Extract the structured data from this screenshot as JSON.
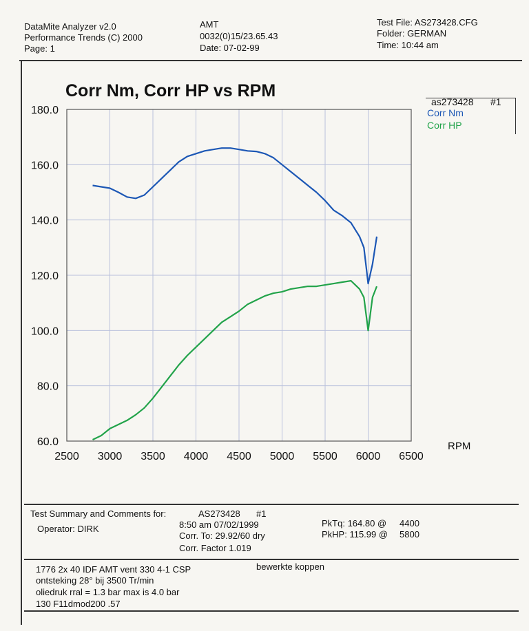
{
  "header": {
    "app": "DataMite Analyzer v2.0",
    "company": "Performance Trends (C) 2000",
    "page": "Page:  1",
    "vehicle": "AMT",
    "run_id": "0032(0)15/23.65.43",
    "date": "Date: 07-02-99",
    "test_file": "Test File: AS273428.CFG",
    "folder": "Folder: GERMAN",
    "time": "Time: 10:44 am"
  },
  "legend": {
    "run": "as273428",
    "run_no": "#1",
    "nm_label": "Corr Nm",
    "hp_label": "Corr HP"
  },
  "colors": {
    "nm": "#1c57b5",
    "hp": "#22a34a",
    "grid": "#b9c0dc"
  },
  "chart_data": {
    "type": "line",
    "title": "Corr Nm, Corr HP vs RPM",
    "xlabel": "RPM",
    "ylabel": "",
    "xlim": [
      2500,
      6500
    ],
    "ylim": [
      60,
      180
    ],
    "x_ticks": [
      "2500",
      "3000",
      "3500",
      "4000",
      "4500",
      "5000",
      "5500",
      "6000",
      "6500"
    ],
    "y_ticks": [
      "60.0",
      "80.0",
      "100.0",
      "120.0",
      "140.0",
      "160.0",
      "180.0"
    ],
    "grid": true,
    "legend_position": "top-right",
    "series": [
      {
        "name": "Corr Nm",
        "x": [
          2800,
          2900,
          3000,
          3100,
          3200,
          3300,
          3400,
          3500,
          3600,
          3700,
          3800,
          3900,
          4000,
          4100,
          4200,
          4300,
          4400,
          4500,
          4600,
          4700,
          4800,
          4900,
          5000,
          5100,
          5200,
          5300,
          5400,
          5500,
          5600,
          5700,
          5800,
          5900,
          5950,
          6000,
          6050,
          6100
        ],
        "y": [
          152.5,
          152,
          151.5,
          150,
          148.3,
          147.8,
          149,
          152,
          155,
          158,
          161,
          163,
          164,
          165,
          165.5,
          166,
          166,
          165.5,
          165,
          164.8,
          164,
          162.5,
          160,
          157.5,
          155,
          152.5,
          150,
          147,
          143.5,
          141.5,
          139,
          134,
          130,
          117,
          124,
          134
        ]
      },
      {
        "name": "Corr HP",
        "x": [
          2800,
          2900,
          3000,
          3100,
          3200,
          3300,
          3400,
          3500,
          3600,
          3700,
          3800,
          3900,
          4000,
          4100,
          4200,
          4300,
          4400,
          4500,
          4600,
          4700,
          4800,
          4900,
          5000,
          5100,
          5200,
          5300,
          5400,
          5500,
          5600,
          5700,
          5800,
          5850,
          5900,
          5950,
          6000,
          6050,
          6100
        ],
        "y": [
          60.5,
          62,
          64.5,
          66,
          67.5,
          69.5,
          72,
          75.5,
          79.5,
          83.5,
          87.5,
          91,
          94,
          97,
          100,
          103,
          105,
          107,
          109.5,
          111,
          112.5,
          113.5,
          114,
          115,
          115.5,
          116,
          116,
          116.5,
          117,
          117.5,
          118,
          116.5,
          115,
          112,
          100,
          112,
          116
        ]
      }
    ]
  },
  "summary": {
    "title": "Test Summary and Comments for:",
    "run": "AS273428",
    "run_no": "#1",
    "operator": "Operator: DIRK",
    "datetime": "8:50 am 07/02/1999",
    "corr_to": "Corr. To: 29.92/60 dry",
    "corr_factor": "Corr. Factor 1.019",
    "pktq": "PkTq: 164.80 @",
    "pktq_rpm": "4400",
    "pkhp": "PkHP: 115.99 @",
    "pkhp_rpm": "5800"
  },
  "comments": {
    "line1": "1776 2x  40 IDF AMT vent 330  4-1 CSP",
    "line1_right": "bewerkte koppen",
    "line2": "ontsteking 28° bij 3500 Tr/min",
    "line3": "oliedruk rral = 1.3 bar max is 4.0 bar",
    "line4": "130 F11dmod200 .57"
  }
}
